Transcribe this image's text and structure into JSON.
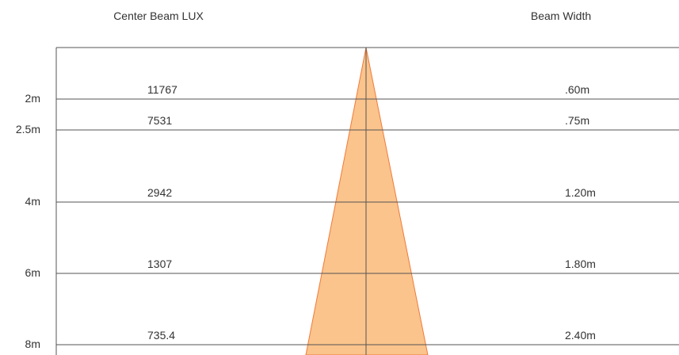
{
  "header": {
    "lux": "Center Beam LUX",
    "width": "Beam Width"
  },
  "rows": [
    {
      "distance": "2m",
      "lux": "11767",
      "width": ".60m"
    },
    {
      "distance": "2.5m",
      "lux": "7531",
      "width": ".75m"
    },
    {
      "distance": "4m",
      "lux": "2942",
      "width": "1.20m"
    },
    {
      "distance": "6m",
      "lux": "1307",
      "width": "1.80m"
    },
    {
      "distance": "8m",
      "lux": "735.4",
      "width": "2.40m"
    }
  ]
}
